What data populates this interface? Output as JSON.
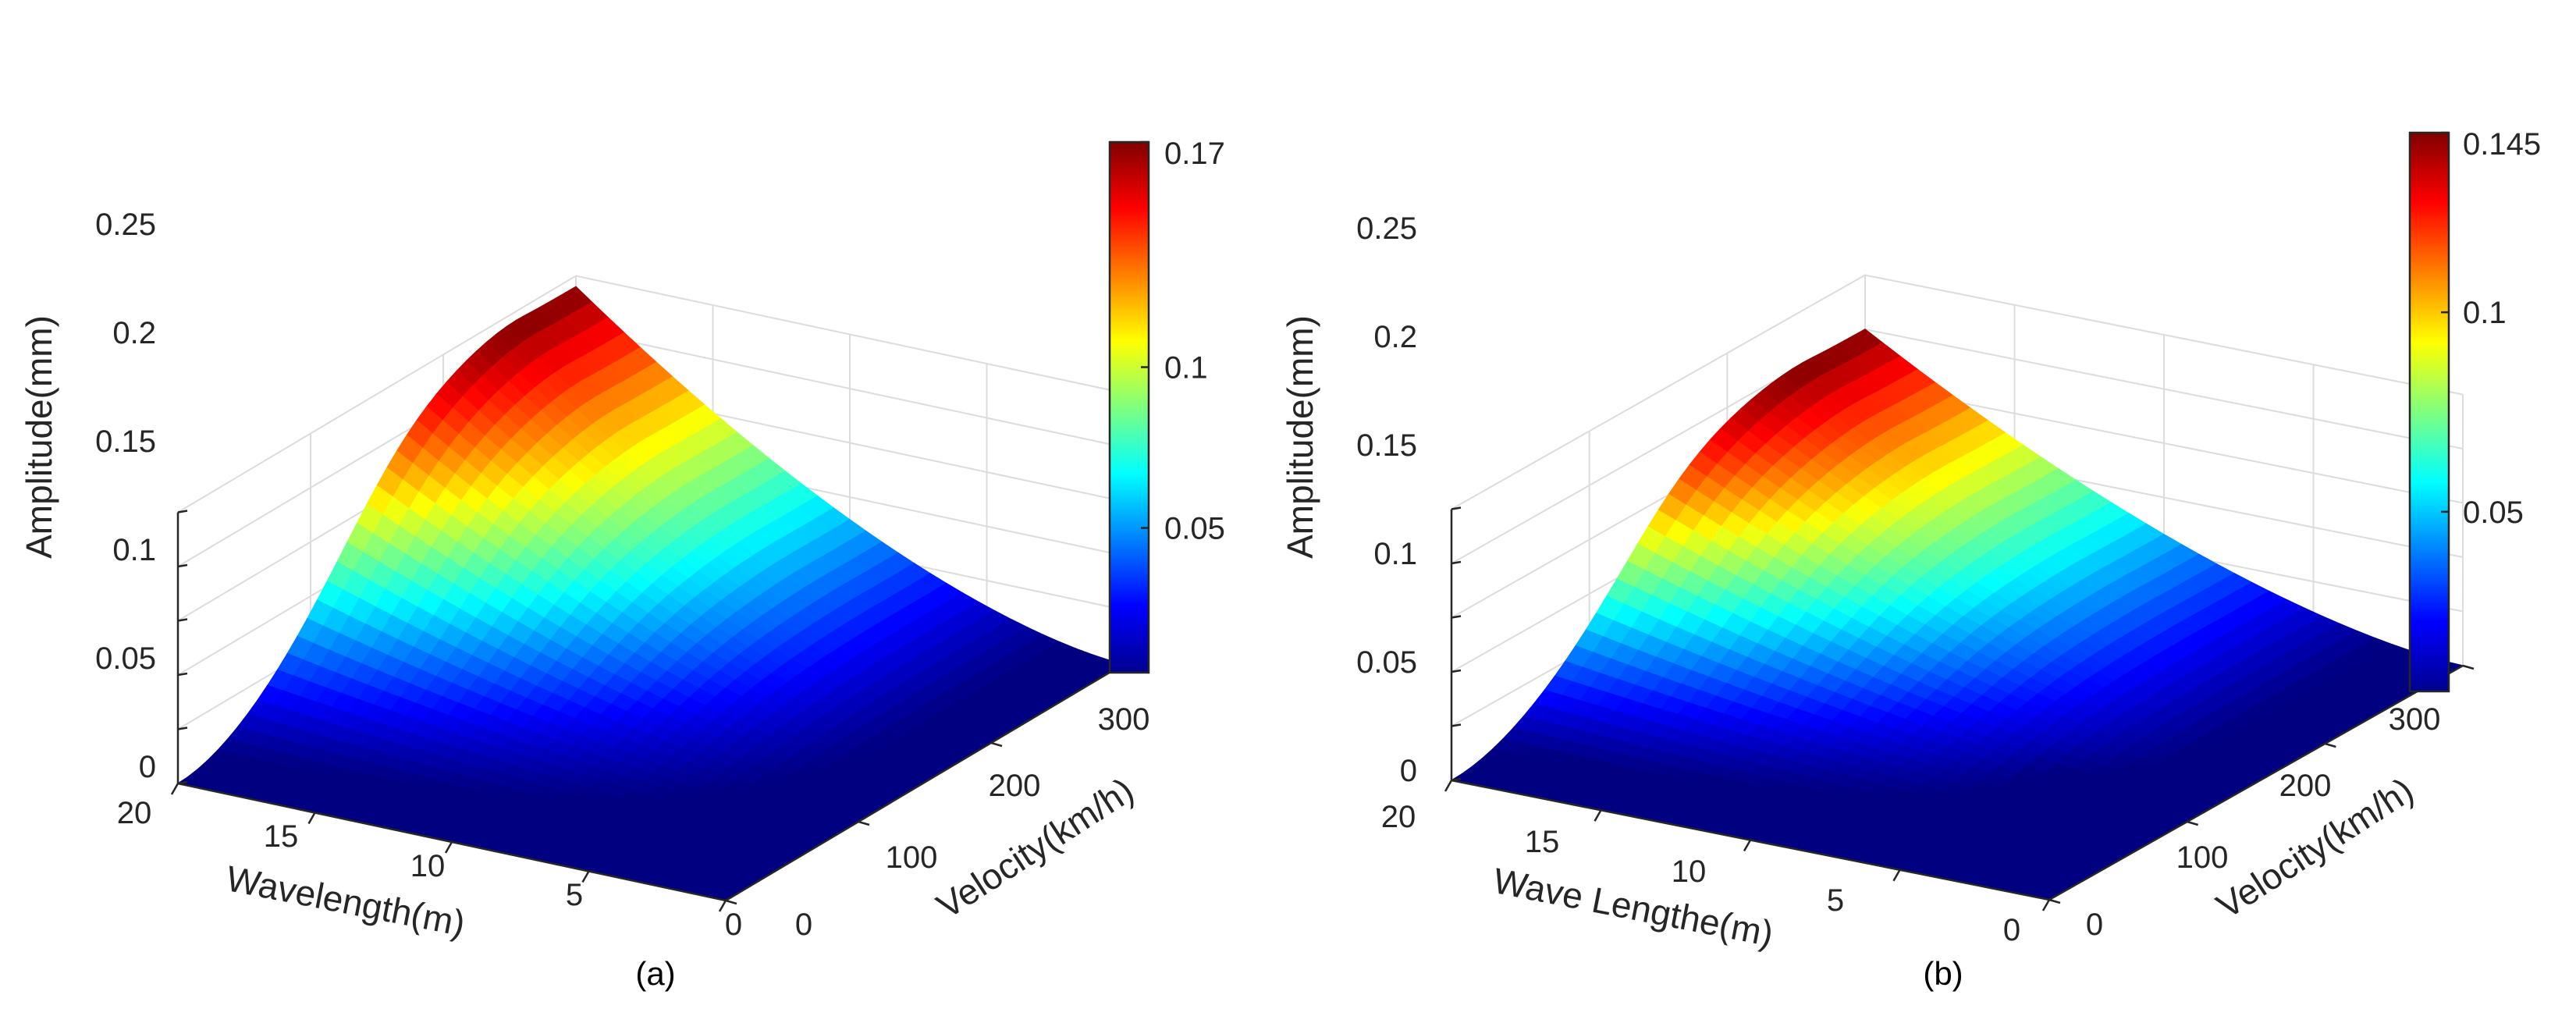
{
  "chart_data": [
    {
      "type": "surface",
      "panel_label": "(a)",
      "xlabel": "Wavelength(m)",
      "ylabel": "Velocity(km/h)",
      "zlabel": "Amplitude(mm)",
      "x_ticks": [
        "20",
        "15",
        "10",
        "5",
        "0"
      ],
      "y_ticks": [
        "0",
        "100",
        "200",
        "300"
      ],
      "z_ticks": [
        "0",
        "0.05",
        "0.1",
        "0.15",
        "0.2",
        "0.25"
      ],
      "xlim": [
        0,
        20
      ],
      "ylim": [
        0,
        300
      ],
      "zlim": [
        0,
        0.25
      ],
      "peak_amplitude": 0.24,
      "colormap": "jet",
      "colorbar": {
        "limits": [
          0.005,
          0.17
        ],
        "ticks": [
          "0.05",
          "0.1",
          "0.17"
        ],
        "tick_values": [
          0.05,
          0.1,
          0.17
        ]
      },
      "corner_amplitudes": {
        "wl20_v0": 0.0,
        "wl0_v0": 0.0,
        "wl0_v300": 0.0,
        "wl20_v300": 0.24
      },
      "notch": false
    },
    {
      "type": "surface",
      "panel_label": "(b)",
      "xlabel": "Wave Lengthe(m)",
      "ylabel": "Velocity(km/h)",
      "zlabel": "Amplitude(mm)",
      "x_ticks": [
        "20",
        "15",
        "10",
        "5",
        "0"
      ],
      "y_ticks": [
        "0",
        "100",
        "200",
        "300"
      ],
      "z_ticks": [
        "0",
        "0.05",
        "0.1",
        "0.15",
        "0.2",
        "0.25"
      ],
      "xlim": [
        0,
        20
      ],
      "ylim": [
        0,
        300
      ],
      "zlim": [
        0,
        0.25
      ],
      "peak_amplitude": 0.2,
      "colormap": "jet",
      "colorbar": {
        "limits": [
          0.005,
          0.145
        ],
        "ticks": [
          "0.05",
          "0.1",
          "0.145"
        ],
        "tick_values": [
          0.05,
          0.1,
          0.145
        ]
      },
      "corner_amplitudes": {
        "wl20_v0": 0.0,
        "wl0_v0": 0.0,
        "wl0_v300": 0.0,
        "wl20_v300": 0.2
      },
      "notch": true
    }
  ]
}
